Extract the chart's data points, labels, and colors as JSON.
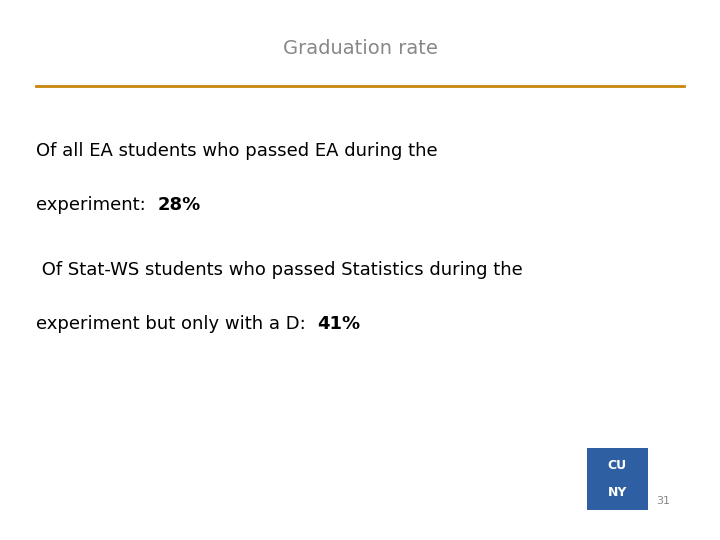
{
  "title": "Graduation rate",
  "title_color": "#888888",
  "title_fontsize": 14,
  "line_color": "#C8860A",
  "text1_line1": "Of all EA students who passed EA during the",
  "text1_line2_normal": "experiment:  ",
  "text1_line2_bold": "28%",
  "text2_line1": " Of Stat-WS students who passed Statistics during the",
  "text2_line2_normal": "experiment but only with a D:  ",
  "text2_line2_bold": "41%",
  "text_fontsize": 13,
  "bold_fontsize": 13,
  "page_number": "31",
  "page_number_color": "#888888",
  "cuny_box_color": "#2E5FA3",
  "background_color": "#FFFFFF"
}
